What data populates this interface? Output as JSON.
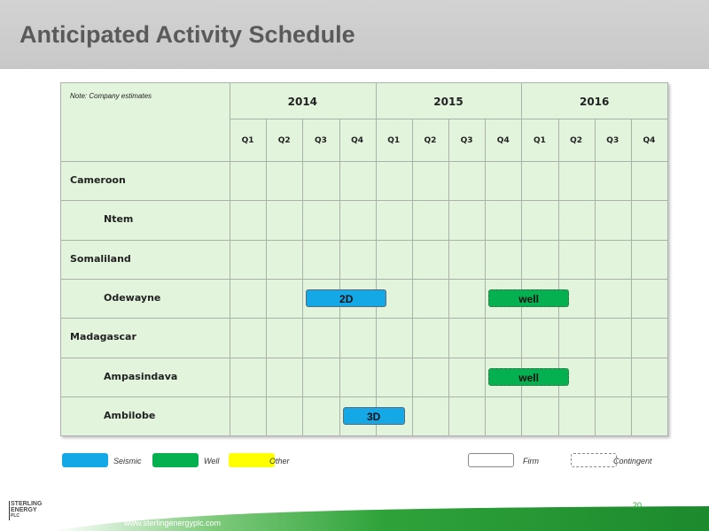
{
  "slide": {
    "title": "Anticipated Activity Schedule",
    "page_number": "20",
    "url": "www.sterlingenergyplc.com"
  },
  "table": {
    "note": "Note:  Company estimates",
    "years": [
      "2014",
      "2015",
      "2016"
    ],
    "quarters": [
      "Q1",
      "Q2",
      "Q3",
      "Q4",
      "Q1",
      "Q2",
      "Q3",
      "Q4",
      "Q1",
      "Q2",
      "Q3",
      "Q4"
    ],
    "rows": [
      {
        "label": "Cameroon",
        "indent": false
      },
      {
        "label": "Ntem",
        "indent": true
      },
      {
        "label": "Somaliland",
        "indent": false
      },
      {
        "label": "Odewayne",
        "indent": true
      },
      {
        "label": "Madagascar",
        "indent": false
      },
      {
        "label": "Ampasindava",
        "indent": true
      },
      {
        "label": "Ambilobe",
        "indent": true
      }
    ],
    "activities": [
      {
        "row": 3,
        "start_quarter": 3,
        "end_quarter": 4.4,
        "label": "2D",
        "type": "seismic",
        "status": "firm"
      },
      {
        "row": 3,
        "start_quarter": 8,
        "end_quarter": 9.4,
        "label": "well",
        "type": "well",
        "status": "contingent"
      },
      {
        "row": 5,
        "start_quarter": 8,
        "end_quarter": 9.4,
        "label": "well",
        "type": "well",
        "status": "contingent"
      },
      {
        "row": 6,
        "start_quarter": 4,
        "end_quarter": 4.9,
        "label": "3D",
        "type": "seismic",
        "status": "firm"
      }
    ]
  },
  "legend": {
    "seismic": "Seismic",
    "well": "Well",
    "other": "Other",
    "firm": "Firm",
    "contingent": "Contingent"
  },
  "colors": {
    "seismic": "#14a8e6",
    "well": "#04b050",
    "other": "#ffff00",
    "grid_background": "#e2f4dc",
    "header_band": "#cccccc",
    "title_text": "#5a5a5a"
  },
  "logo": {
    "lines": [
      "STERLING",
      "ENERGY",
      "PLC"
    ]
  }
}
